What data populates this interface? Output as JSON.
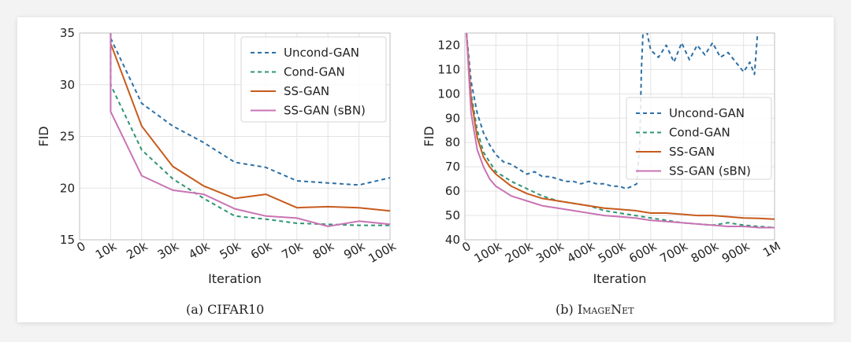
{
  "figure": {
    "captions": [
      {
        "label": "(a)",
        "dataset": "CIFAR10"
      },
      {
        "label": "(b)",
        "dataset": "ImageNet"
      }
    ]
  },
  "colors": {
    "Uncond-GAN": "#2c6fa5",
    "Cond-GAN": "#2e9474",
    "SS-GAN": "#c75b1c",
    "SS-GAN (sBN)": "#c873b3"
  },
  "chart_data": [
    {
      "type": "line",
      "title": "",
      "xlabel": "Iteration",
      "ylabel": "FID",
      "xlim": [
        0,
        100000
      ],
      "ylim": [
        15,
        35
      ],
      "xticks": [
        0,
        10000,
        20000,
        30000,
        40000,
        50000,
        60000,
        70000,
        80000,
        90000,
        100000
      ],
      "xtick_labels": [
        "0",
        "10k",
        "20k",
        "30k",
        "40k",
        "50k",
        "60k",
        "70k",
        "80k",
        "90k",
        "100k"
      ],
      "yticks": [
        15,
        20,
        25,
        30,
        35
      ],
      "ytick_labels": [
        "15",
        "20",
        "25",
        "30",
        "35"
      ],
      "grid": true,
      "legend": "top-right",
      "series": [
        {
          "name": "Uncond-GAN",
          "style": "dashed",
          "x": [
            10000,
            20000,
            30000,
            40000,
            50000,
            60000,
            70000,
            80000,
            90000,
            100000
          ],
          "y": [
            34.5,
            28.2,
            26.0,
            24.4,
            22.5,
            22.0,
            20.7,
            20.5,
            20.3,
            21.0
          ]
        },
        {
          "name": "Cond-GAN",
          "style": "dashed",
          "x": [
            10000,
            10000,
            20000,
            30000,
            40000,
            50000,
            60000,
            70000,
            80000,
            90000,
            100000
          ],
          "y": [
            35.0,
            30.0,
            23.7,
            20.9,
            19.0,
            17.3,
            17.0,
            16.6,
            16.5,
            16.4,
            16.4
          ]
        },
        {
          "name": "SS-GAN",
          "style": "solid",
          "x": [
            10000,
            20000,
            30000,
            40000,
            50000,
            60000,
            70000,
            80000,
            90000,
            100000
          ],
          "y": [
            34.0,
            26.0,
            22.1,
            20.2,
            19.0,
            19.4,
            18.1,
            18.2,
            18.1,
            17.8
          ]
        },
        {
          "name": "SS-GAN (sBN)",
          "style": "solid",
          "x": [
            10000,
            10000,
            20000,
            30000,
            40000,
            50000,
            60000,
            70000,
            80000,
            90000,
            100000
          ],
          "y": [
            35.0,
            27.4,
            21.2,
            19.8,
            19.4,
            18.0,
            17.3,
            17.1,
            16.3,
            16.8,
            16.5
          ]
        }
      ]
    },
    {
      "type": "line",
      "title": "",
      "xlabel": "Iteration",
      "ylabel": "FID",
      "xlim": [
        0,
        1000000
      ],
      "ylim": [
        40,
        125
      ],
      "xticks": [
        0,
        100000,
        200000,
        300000,
        400000,
        500000,
        600000,
        700000,
        800000,
        900000,
        1000000
      ],
      "xtick_labels": [
        "0",
        "100k",
        "200k",
        "300k",
        "400k",
        "500k",
        "600k",
        "700k",
        "800k",
        "900k",
        "1M"
      ],
      "yticks": [
        40,
        50,
        60,
        70,
        80,
        90,
        100,
        110,
        120
      ],
      "ytick_labels": [
        "40",
        "50",
        "60",
        "70",
        "80",
        "90",
        "100",
        "110",
        "120"
      ],
      "grid": true,
      "legend": "center-right",
      "series": [
        {
          "name": "Uncond-GAN",
          "style": "dashed",
          "x": [
            5000,
            20000,
            40000,
            60000,
            80000,
            100000,
            125000,
            150000,
            175000,
            200000,
            225000,
            250000,
            275000,
            300000,
            325000,
            350000,
            375000,
            400000,
            425000,
            450000,
            475000,
            500000,
            520000,
            540000,
            555000,
            565000,
            570000,
            575000,
            580000,
            600000,
            625000,
            650000,
            675000,
            700000,
            725000,
            750000,
            775000,
            800000,
            825000,
            850000,
            875000,
            900000,
            920000,
            935000,
            945000
          ],
          "y": [
            125,
            105,
            92,
            84,
            79,
            75,
            72,
            71,
            69,
            67,
            68,
            66,
            66,
            65,
            64,
            64,
            63,
            64,
            63,
            63,
            62,
            62,
            61,
            62,
            63,
            80,
            110,
            125,
            130,
            118,
            115,
            120,
            113,
            121,
            114,
            120,
            116,
            121,
            115,
            117,
            113,
            109,
            113,
            108,
            125
          ]
        },
        {
          "name": "Cond-GAN",
          "style": "dashed",
          "x": [
            5000,
            20000,
            40000,
            60000,
            80000,
            100000,
            150000,
            200000,
            250000,
            300000,
            350000,
            400000,
            450000,
            500000,
            550000,
            600000,
            650000,
            700000,
            750000,
            800000,
            850000,
            900000,
            950000,
            1000000
          ],
          "y": [
            125,
            100,
            85,
            76,
            72,
            68,
            64,
            61,
            58,
            56,
            55,
            54,
            52,
            51,
            50,
            49,
            48,
            47,
            46.5,
            46,
            47,
            46,
            45.5,
            45
          ]
        },
        {
          "name": "SS-GAN",
          "style": "solid",
          "x": [
            5000,
            20000,
            40000,
            60000,
            80000,
            100000,
            150000,
            200000,
            250000,
            300000,
            350000,
            400000,
            450000,
            500000,
            550000,
            600000,
            650000,
            700000,
            750000,
            800000,
            850000,
            900000,
            950000,
            1000000
          ],
          "y": [
            125,
            98,
            82,
            74,
            70,
            67,
            62,
            59,
            57,
            56,
            55,
            54,
            53,
            52.5,
            52,
            51,
            51,
            50.5,
            50,
            50,
            49.5,
            49,
            48.8,
            48.5
          ]
        },
        {
          "name": "SS-GAN (sBN)",
          "style": "solid",
          "x": [
            5000,
            20000,
            40000,
            60000,
            80000,
            100000,
            150000,
            200000,
            250000,
            300000,
            350000,
            400000,
            450000,
            500000,
            550000,
            600000,
            650000,
            700000,
            750000,
            800000,
            850000,
            900000,
            950000,
            1000000
          ],
          "y": [
            125,
            92,
            77,
            70,
            65,
            62,
            58,
            56,
            54,
            53,
            52,
            51,
            50,
            49.5,
            49,
            48,
            47.5,
            47,
            46.5,
            46,
            45.5,
            45.5,
            45,
            45
          ]
        }
      ]
    }
  ]
}
